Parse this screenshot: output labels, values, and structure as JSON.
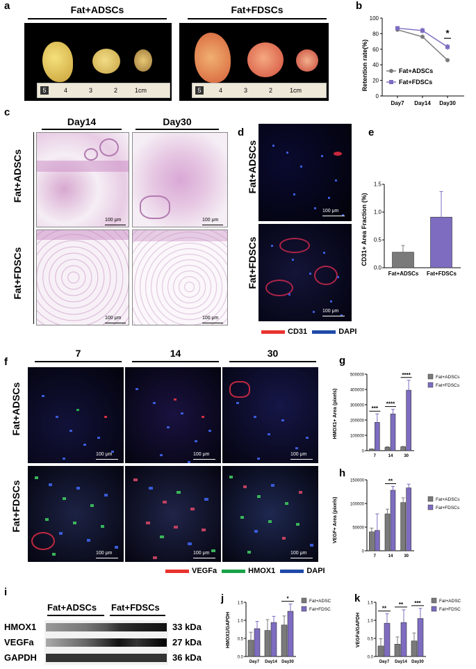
{
  "panels": {
    "a": "a",
    "b": "b",
    "c": "c",
    "d": "d",
    "e": "e",
    "f": "f",
    "g": "g",
    "h": "h",
    "i": "i",
    "j": "j",
    "k": "k"
  },
  "groups": {
    "adscs": "Fat+ADSCs",
    "fdscs": "Fat+FDSCs"
  },
  "days": {
    "d14": "Day14",
    "d30": "Day30"
  },
  "ruler": {
    "five": "5",
    "four": "4",
    "three": "3",
    "two": "2",
    "one": "1cm"
  },
  "scalebar": "100 μm",
  "stain_d": {
    "cd31": "CD31",
    "dapi": "DAPI"
  },
  "stain_f": {
    "vegfa": "VEGFa",
    "hmox1": "HMOX1",
    "dapi": "DAPI"
  },
  "timepoints": [
    "7",
    "14",
    "30"
  ],
  "colors": {
    "red": "#e8332f",
    "blue": "#1f4aa8",
    "green": "#1aa34a",
    "gray": "#7a7a7a",
    "purple": "#7d6cc0"
  },
  "blot": {
    "rows": [
      "HMOX1",
      "VEGFa",
      "GAPDH"
    ],
    "sizes": [
      "33 kDa",
      "27 kDa",
      "36 kDa"
    ]
  },
  "chart_data": [
    {
      "panel": "b",
      "type": "line",
      "xlabel": "",
      "ylabel": "Retention rate(%)",
      "categories": [
        "Day7",
        "Day14",
        "Day30"
      ],
      "ylim": [
        0,
        100
      ],
      "yticks": [
        0,
        20,
        40,
        60,
        80,
        100
      ],
      "series": [
        {
          "name": "Fat+ADSCs",
          "values": [
            85,
            76,
            46
          ],
          "err": [
            2,
            2,
            2
          ]
        },
        {
          "name": "Fat+FDSCs",
          "values": [
            87,
            84,
            63
          ],
          "err": [
            2,
            4,
            4
          ]
        }
      ],
      "annotation": "*",
      "legend": "inside-bottom-left"
    },
    {
      "panel": "e",
      "type": "bar",
      "ylabel": "CD31+ Area Fraction (%)",
      "categories": [
        "Fat+ADSCs",
        "Fat+FDSCs"
      ],
      "values": [
        0.28,
        0.91
      ],
      "err": [
        0.12,
        0.46
      ],
      "ylim": [
        0,
        1.5
      ],
      "yticks": [
        "0.0",
        "0.5",
        "1.0",
        "1.5"
      ]
    },
    {
      "panel": "g",
      "type": "bar",
      "ylabel": "HMOX1+ Area (pixels)",
      "categories": [
        "7",
        "14",
        "30"
      ],
      "ylim": [
        0,
        500000
      ],
      "yticks": [
        "0",
        "100000",
        "200000",
        "300000",
        "400000",
        "500000"
      ],
      "series": [
        {
          "name": "Fat+ADSCs",
          "values": [
            10000,
            22000,
            25000
          ],
          "err": [
            2000,
            4000,
            3000
          ]
        },
        {
          "name": "Fat+FDSCs",
          "values": [
            185000,
            240000,
            395000
          ],
          "err": [
            55000,
            30000,
            65000
          ]
        }
      ],
      "annotations": [
        "***",
        "****",
        "****"
      ],
      "legend": "right"
    },
    {
      "panel": "h",
      "type": "bar",
      "ylabel": "VEGF+ Area (pixels)",
      "categories": [
        "7",
        "14",
        "30"
      ],
      "ylim": [
        0,
        150000
      ],
      "yticks": [
        "0",
        "50000",
        "100000",
        "150000"
      ],
      "series": [
        {
          "name": "Fat+ADSCs",
          "values": [
            40000,
            78000,
            102000
          ],
          "err": [
            8000,
            10000,
            10000
          ]
        },
        {
          "name": "Fat+FDSCs",
          "values": [
            43000,
            128000,
            133000
          ],
          "err": [
            35000,
            8000,
            8000
          ]
        }
      ],
      "annotations": [
        "",
        "**",
        ""
      ],
      "legend": "right"
    },
    {
      "panel": "j",
      "type": "bar",
      "ylabel": "HMOX1/GAPDH",
      "categories": [
        "Day7",
        "Day14",
        "Day30"
      ],
      "ylim": [
        0,
        1.5
      ],
      "yticks": [
        "0.0",
        "0.5",
        "1.0",
        "1.5"
      ],
      "series": [
        {
          "name": "Fat+ADSC",
          "values": [
            0.45,
            0.72,
            0.87
          ],
          "err": [
            0.22,
            0.3,
            0.25
          ]
        },
        {
          "name": "Fat+FDSC",
          "values": [
            0.77,
            0.94,
            1.25
          ],
          "err": [
            0.2,
            0.17,
            0.2
          ]
        }
      ],
      "annotations": [
        "",
        "",
        "*"
      ],
      "legend": "top-right"
    },
    {
      "panel": "k",
      "type": "bar",
      "ylabel": "VEGFa/GAPDH",
      "categories": [
        "Day7",
        "Day14",
        "Day30"
      ],
      "ylim": [
        0,
        1.5
      ],
      "yticks": [
        "0.0",
        "0.5",
        "1.0",
        "1.5"
      ],
      "series": [
        {
          "name": "Fat+ADSC",
          "values": [
            0.29,
            0.34,
            0.43
          ],
          "err": [
            0.2,
            0.2,
            0.22
          ]
        },
        {
          "name": "Fat+FDSC",
          "values": [
            0.92,
            0.94,
            1.05
          ],
          "err": [
            0.26,
            0.35,
            0.28
          ]
        }
      ],
      "annotations": [
        "**",
        "**",
        "***"
      ],
      "legend": "top-right"
    }
  ]
}
